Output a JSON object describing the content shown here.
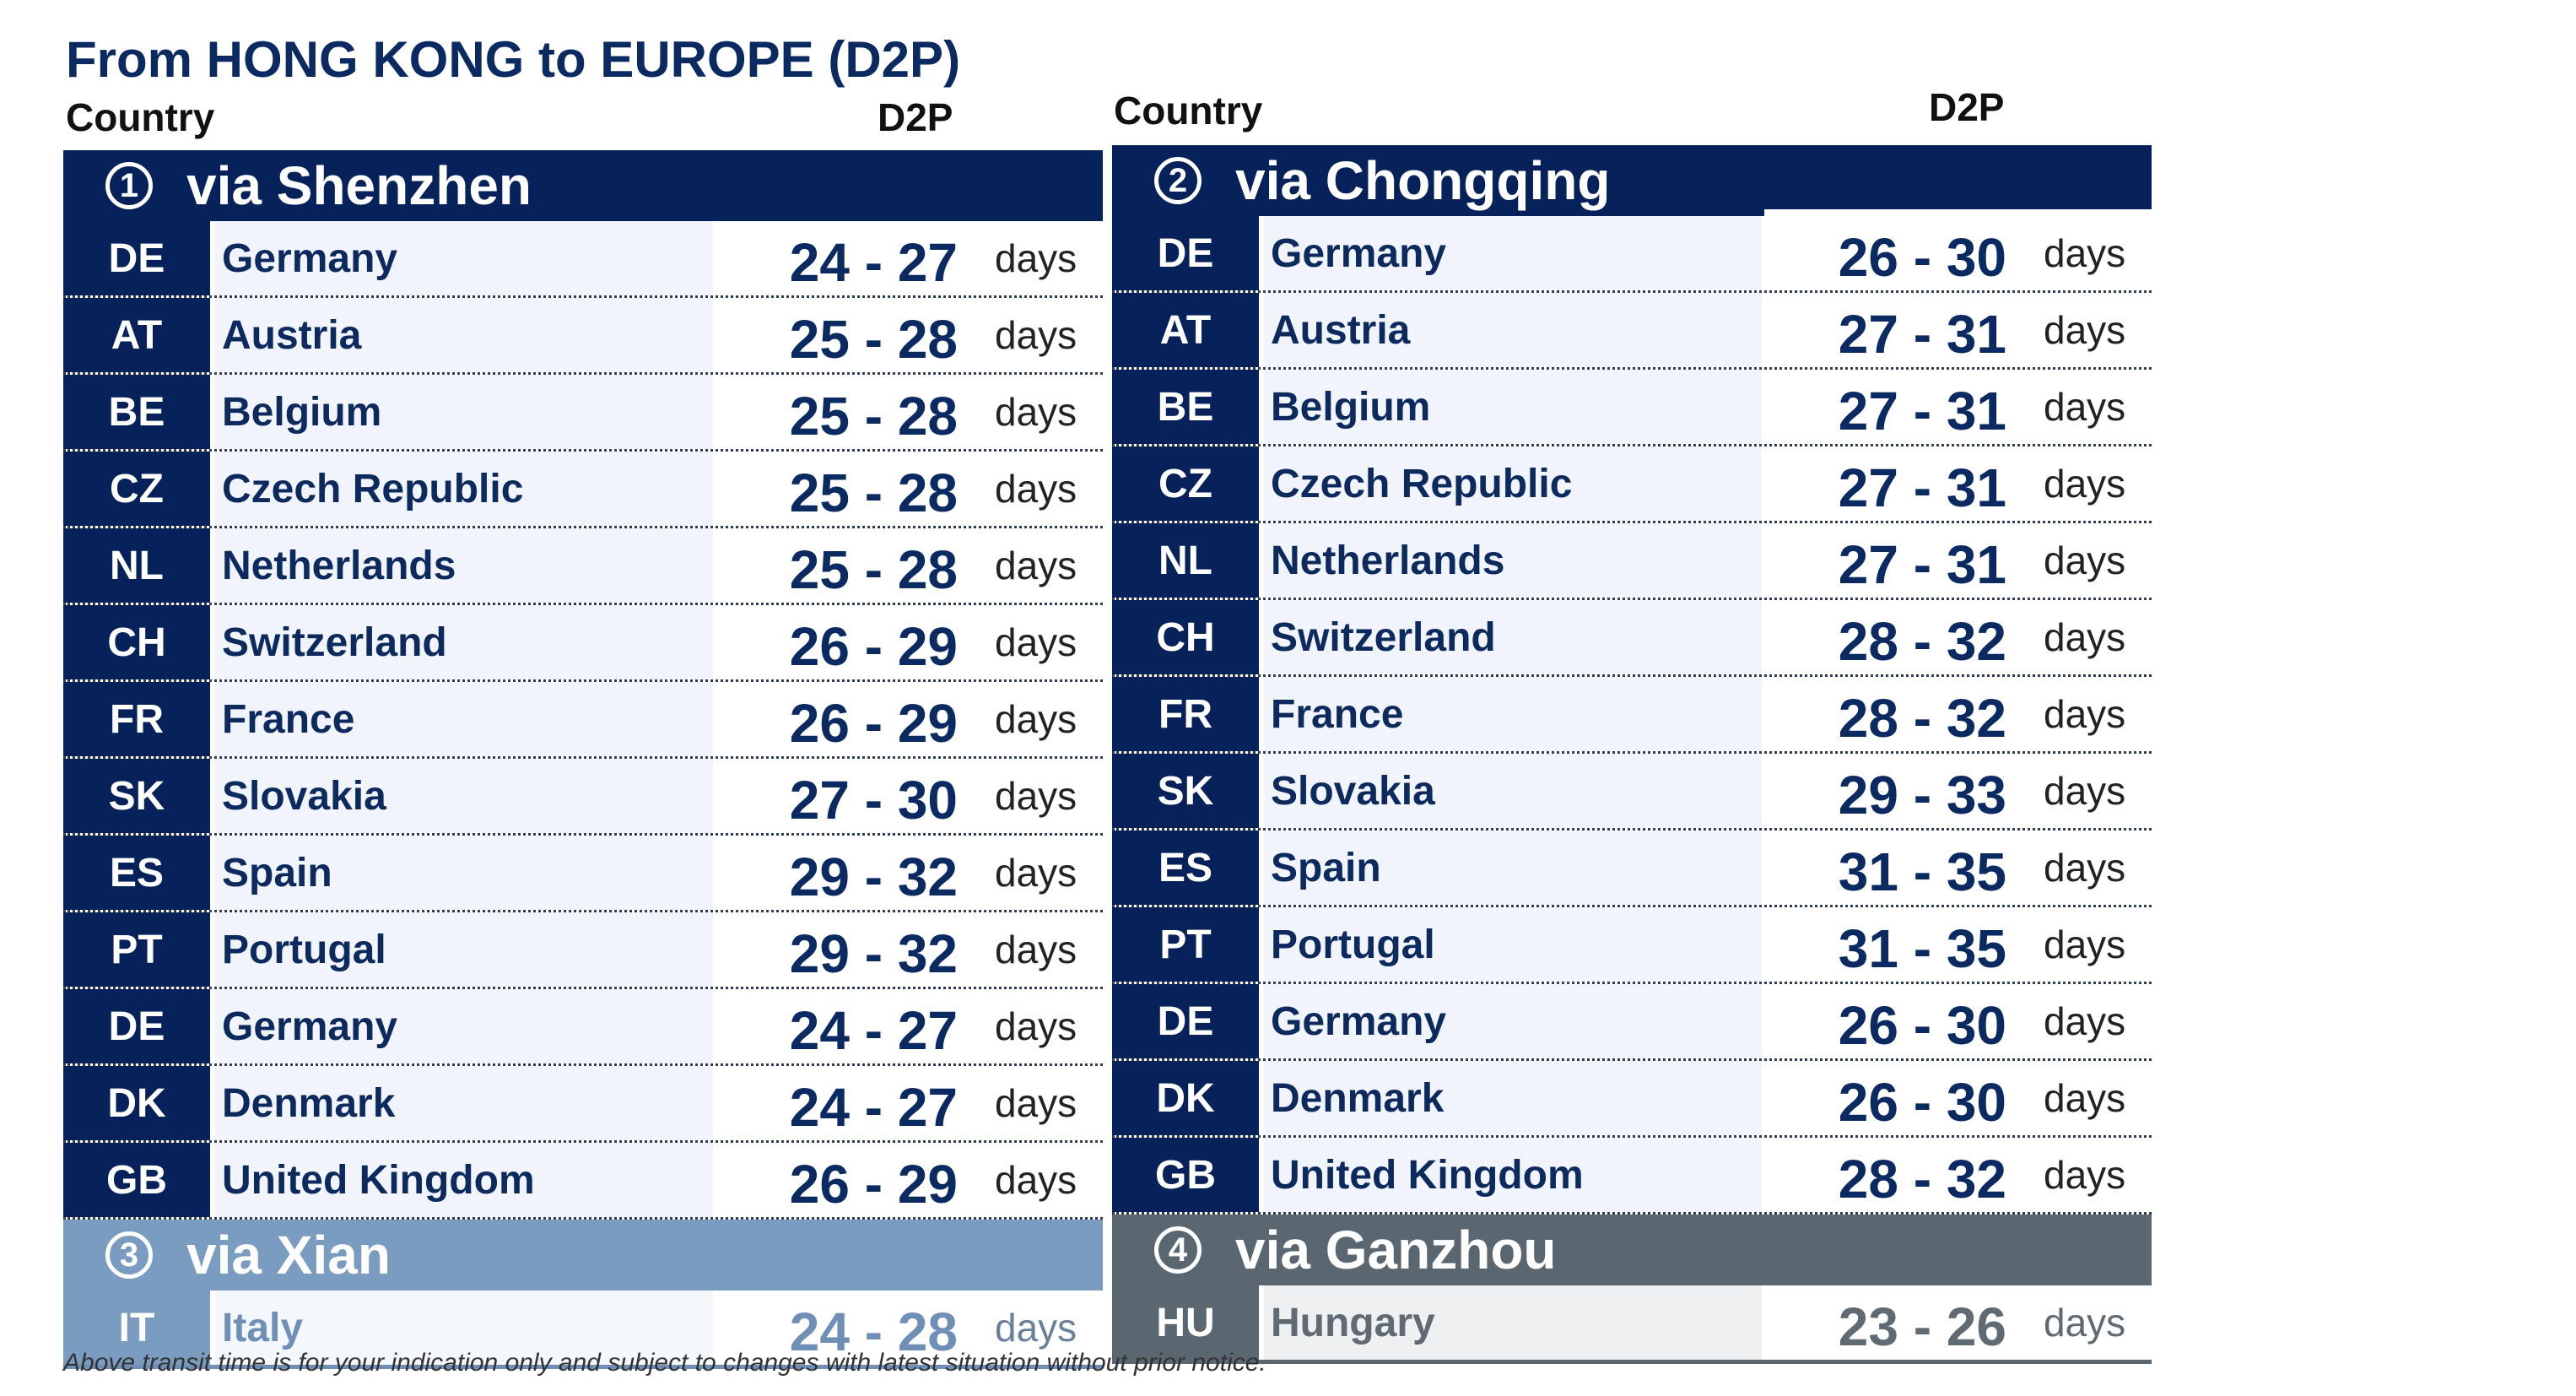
{
  "title": "From HONG KONG to EUROPE (D2P)",
  "left": {
    "col_country": "Country",
    "col_d2p": "D2P",
    "section1": {
      "num": "1",
      "label": "via Shenzhen"
    },
    "rows": [
      {
        "code": "DE",
        "country": "Germany",
        "range": "24 - 27",
        "unit": "days"
      },
      {
        "code": "AT",
        "country": "Austria",
        "range": "25 - 28",
        "unit": "days"
      },
      {
        "code": "BE",
        "country": "Belgium",
        "range": "25 - 28",
        "unit": "days"
      },
      {
        "code": "CZ",
        "country": "Czech Republic",
        "range": "25 - 28",
        "unit": "days"
      },
      {
        "code": "NL",
        "country": "Netherlands",
        "range": "25 - 28",
        "unit": "days"
      },
      {
        "code": "CH",
        "country": "Switzerland",
        "range": "26 - 29",
        "unit": "days"
      },
      {
        "code": "FR",
        "country": "France",
        "range": "26 - 29",
        "unit": "days"
      },
      {
        "code": "SK",
        "country": "Slovakia",
        "range": "27 - 30",
        "unit": "days"
      },
      {
        "code": "ES",
        "country": "Spain",
        "range": "29 - 32",
        "unit": "days"
      },
      {
        "code": "PT",
        "country": "Portugal",
        "range": "29 - 32",
        "unit": "days"
      },
      {
        "code": "DE",
        "country": "Germany",
        "range": "24 - 27",
        "unit": "days"
      },
      {
        "code": "DK",
        "country": "Denmark",
        "range": "24 - 27",
        "unit": "days"
      },
      {
        "code": "GB",
        "country": "United Kingdom",
        "range": "26 - 29",
        "unit": "days"
      }
    ],
    "section3": {
      "num": "3",
      "label": "via Xian"
    },
    "section3_row": {
      "code": "IT",
      "country": "Italy",
      "range": "24 - 28",
      "unit": "days"
    }
  },
  "right": {
    "col_country": "Country",
    "col_d2p": "D2P",
    "section2": {
      "num": "2",
      "label": "via Chongqing"
    },
    "rows": [
      {
        "code": "DE",
        "country": "Germany",
        "range": "26 - 30",
        "unit": "days"
      },
      {
        "code": "AT",
        "country": "Austria",
        "range": "27 - 31",
        "unit": "days"
      },
      {
        "code": "BE",
        "country": "Belgium",
        "range": "27 - 31",
        "unit": "days"
      },
      {
        "code": "CZ",
        "country": "Czech Republic",
        "range": "27 - 31",
        "unit": "days"
      },
      {
        "code": "NL",
        "country": "Netherlands",
        "range": "27 - 31",
        "unit": "days"
      },
      {
        "code": "CH",
        "country": "Switzerland",
        "range": "28 - 32",
        "unit": "days"
      },
      {
        "code": "FR",
        "country": "France",
        "range": "28 - 32",
        "unit": "days"
      },
      {
        "code": "SK",
        "country": "Slovakia",
        "range": "29 - 33",
        "unit": "days"
      },
      {
        "code": "ES",
        "country": "Spain",
        "range": "31 - 35",
        "unit": "days"
      },
      {
        "code": "PT",
        "country": "Portugal",
        "range": "31 - 35",
        "unit": "days"
      },
      {
        "code": "DE",
        "country": "Germany",
        "range": "26 - 30",
        "unit": "days"
      },
      {
        "code": "DK",
        "country": "Denmark",
        "range": "26 - 30",
        "unit": "days"
      },
      {
        "code": "GB",
        "country": "United Kingdom",
        "range": "28 - 32",
        "unit": "days"
      }
    ],
    "section4": {
      "num": "4",
      "label": "via Ganzhou"
    },
    "section4_row": {
      "code": "HU",
      "country": "Hungary",
      "range": "23 - 26",
      "unit": "days"
    }
  },
  "footnote": "Above transit time is for your indication only and subject to changes with latest situation without prior notice.",
  "colors": {
    "navy": "#07215a",
    "steel": "#7b9cc1",
    "slate": "#5b6770"
  }
}
